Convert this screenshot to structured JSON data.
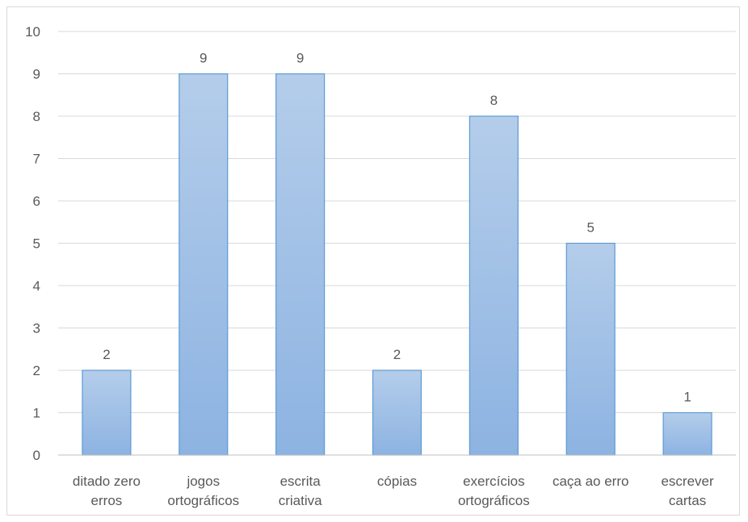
{
  "chart_data": {
    "type": "bar",
    "categories": [
      [
        "ditado zero",
        "erros"
      ],
      [
        "jogos",
        "ortográficos"
      ],
      [
        "escrita",
        "criativa"
      ],
      [
        "cópias"
      ],
      [
        "exercícios",
        "ortográficos"
      ],
      [
        "caça ao erro"
      ],
      [
        "escrever",
        "cartas"
      ]
    ],
    "values": [
      2,
      9,
      9,
      2,
      8,
      5,
      1
    ],
    "ylim": [
      0,
      10
    ],
    "yticks": [
      0,
      1,
      2,
      3,
      4,
      5,
      6,
      7,
      8,
      9,
      10
    ],
    "grid": true,
    "legend": "none",
    "data_labels": true,
    "colors": {
      "bar_top": "#b4cdea",
      "bar_bottom": "#8db3e2",
      "bar_border": "#5b9bd5",
      "grid": "#d9d9d9",
      "text": "#595959"
    }
  }
}
